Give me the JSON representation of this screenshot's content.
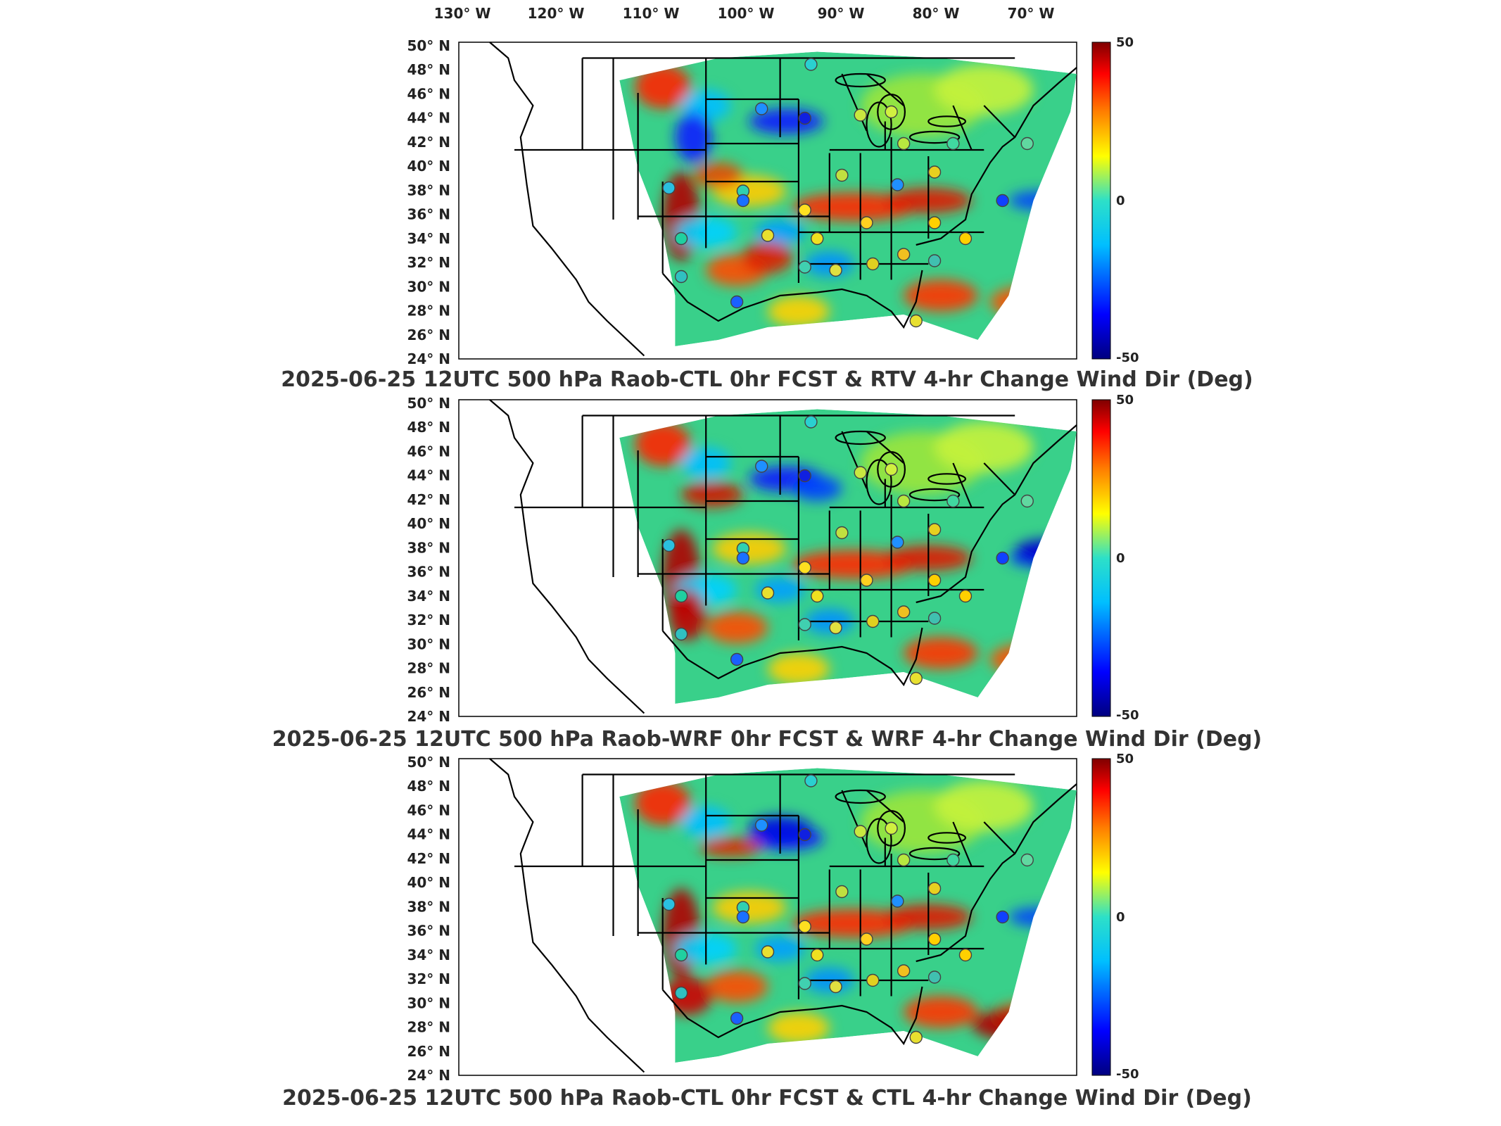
{
  "lon_labels": [
    "130",
    "120",
    "110",
    "100",
    "90",
    "80",
    "70"
  ],
  "lon_suffix": "W",
  "lat_labels": [
    "50",
    "48",
    "46",
    "44",
    "42",
    "40",
    "38",
    "36",
    "34",
    "32",
    "30",
    "28",
    "26",
    "24"
  ],
  "lat_suffix": "N",
  "degree_symbol": "°",
  "colorbar": {
    "max": "50",
    "mid": "0",
    "min": "-50"
  },
  "panels": [
    {
      "title": "2025-06-25 12UTC 500 hPa Raob-CTL 0hr FCST & RTV 4-hr Change Wind Dir (Deg)"
    },
    {
      "title": "2025-06-25 12UTC 500 hPa Raob-WRF 0hr FCST & WRF 4-hr Change Wind Dir (Deg)"
    },
    {
      "title": "2025-06-25 12UTC 500 hPa Raob-CTL 0hr FCST & CTL 4-hr Change Wind Dir (Deg)"
    }
  ],
  "colors": {
    "jet_stops": [
      "#00007f",
      "#0000ff",
      "#00bfff",
      "#2de0c8",
      "#ffff00",
      "#ff7f00",
      "#ff0000",
      "#7f0000"
    ],
    "field_background": "#39d08a",
    "outline": "#000000"
  }
}
